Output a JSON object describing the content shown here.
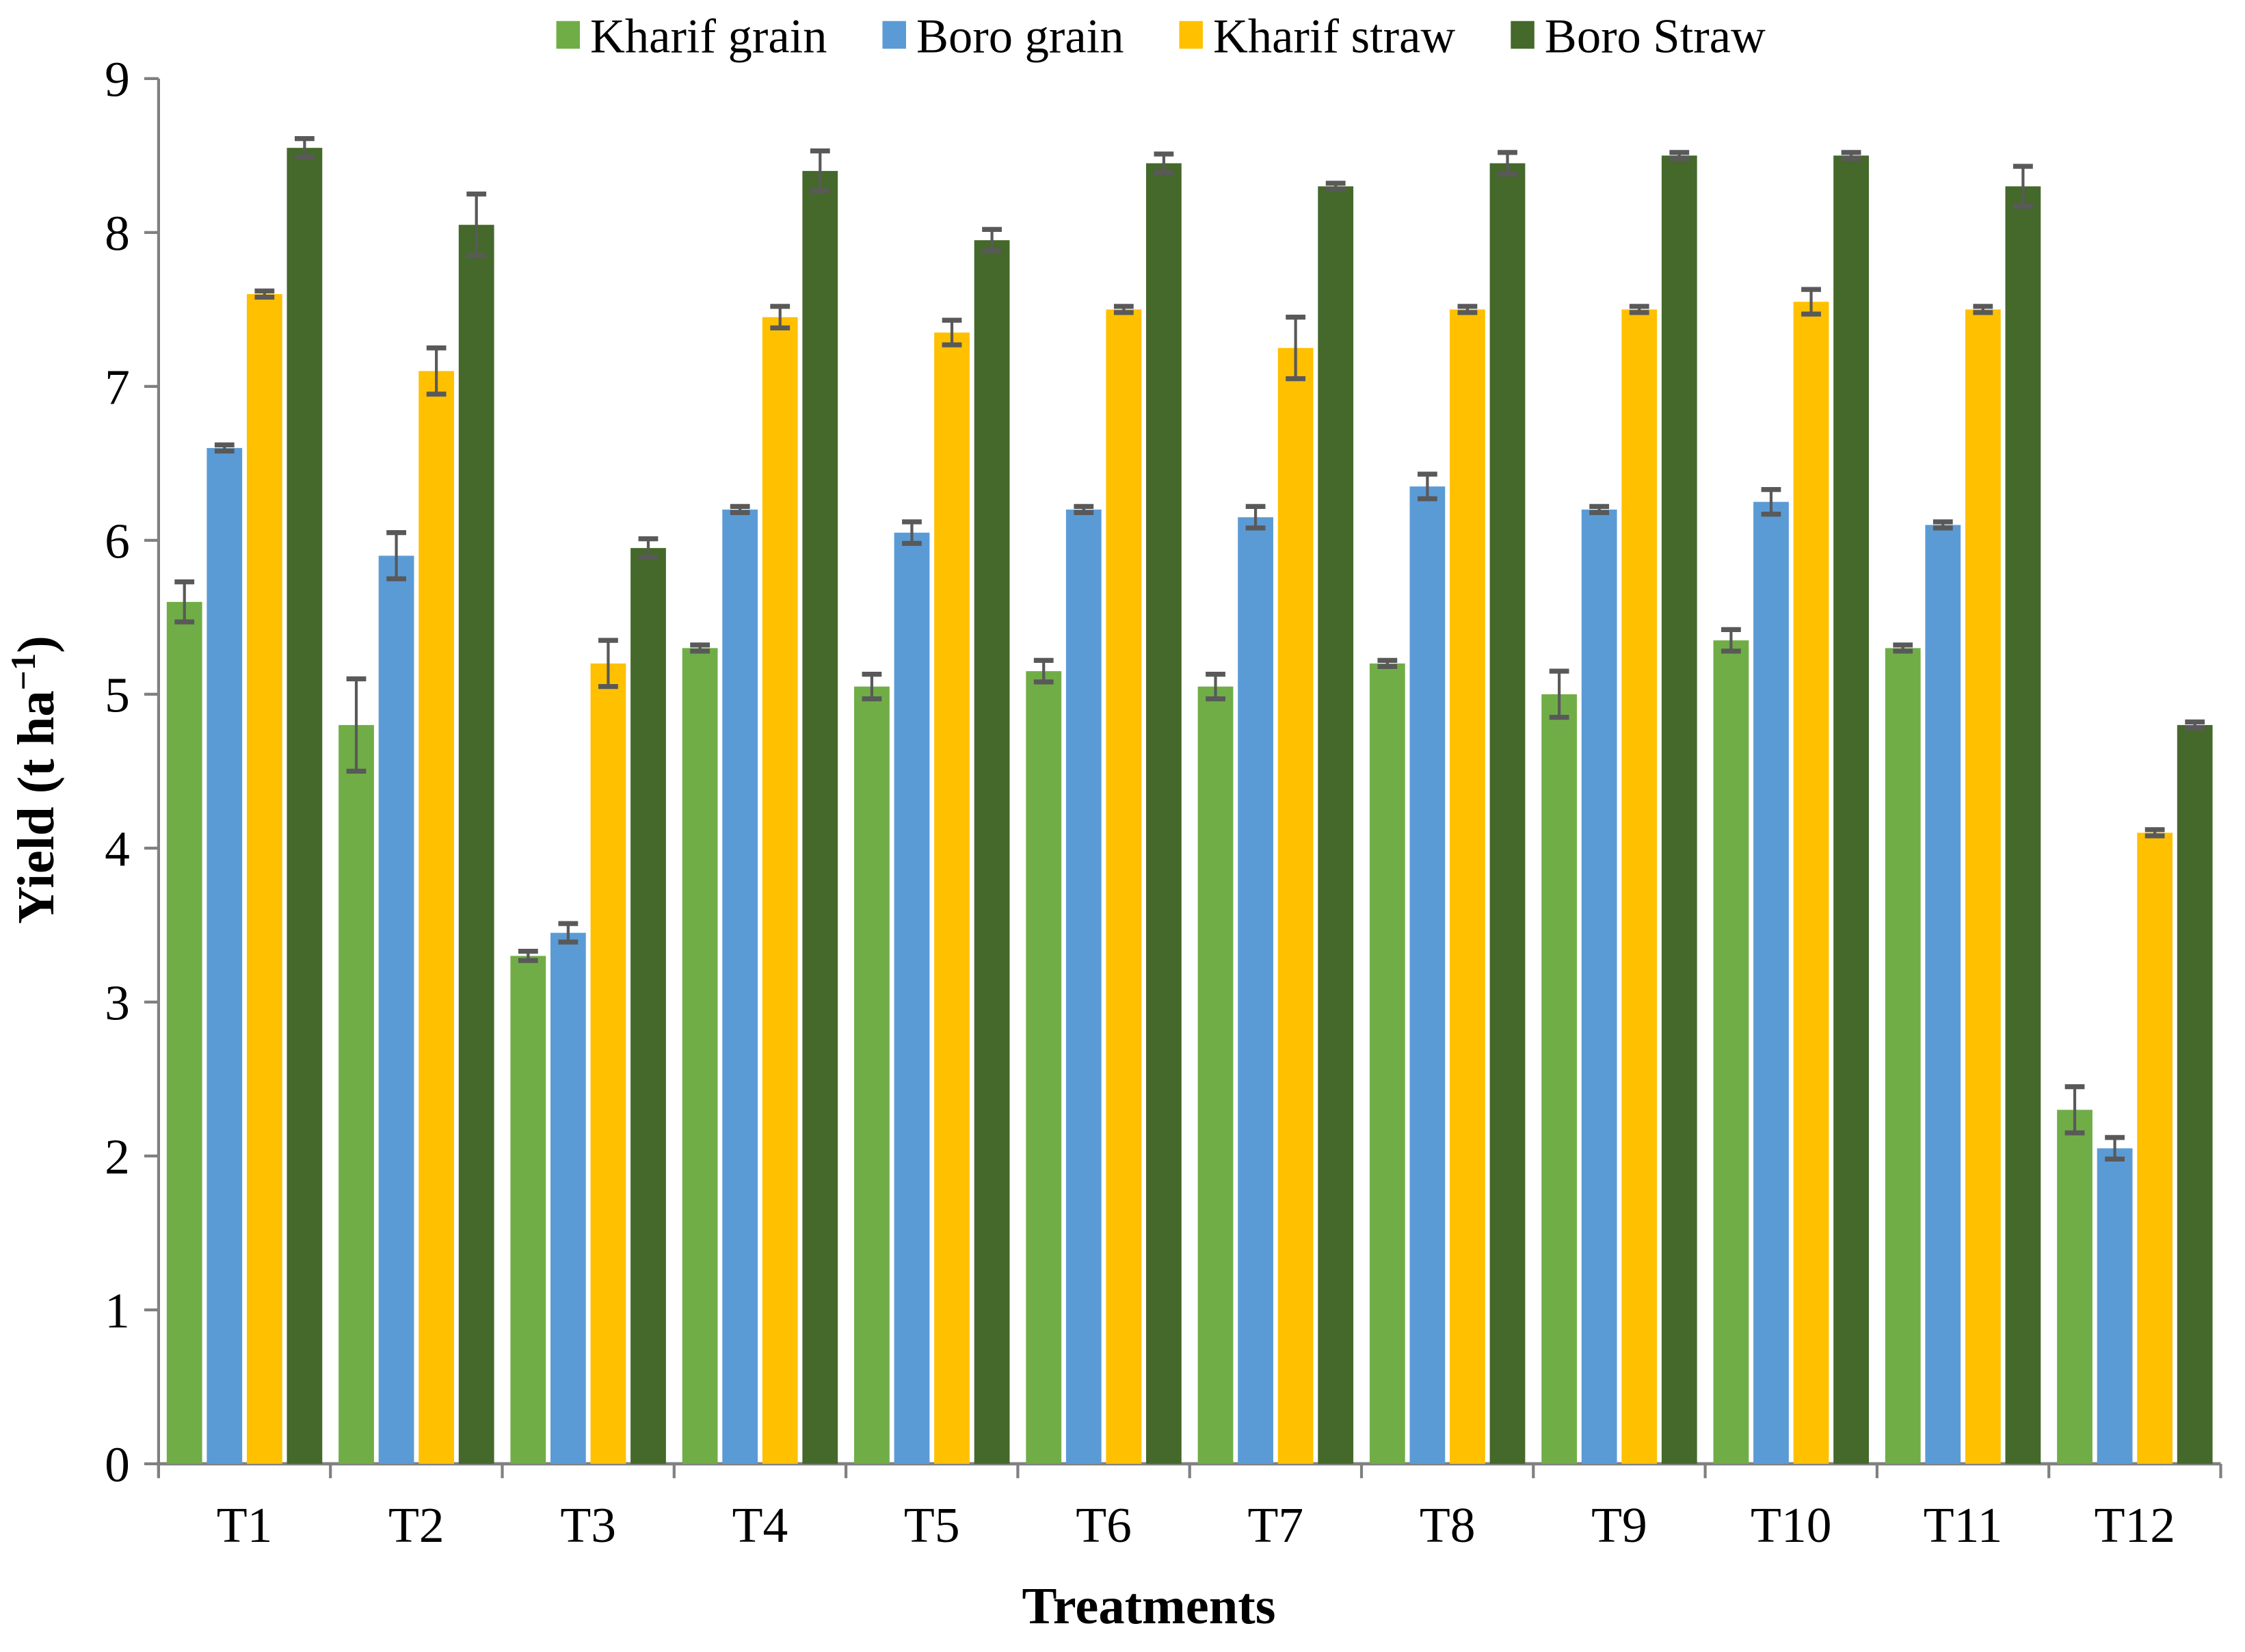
{
  "figure": {
    "background": "#ffffff"
  },
  "legend": {
    "position": "top-center",
    "items": [
      {
        "label": "Kharif grain",
        "color": "#70AD47"
      },
      {
        "label": "Boro grain",
        "color": "#5B9BD5"
      },
      {
        "label": "Kharif straw",
        "color": "#FFC000"
      },
      {
        "label": "Boro Straw",
        "color": "#45682B"
      }
    ]
  },
  "chart_data": {
    "type": "bar",
    "title": "",
    "xlabel": "Treatments",
    "ylabel": "Yield (t ha⁻¹)",
    "ylabel_parts": {
      "base": "Yield (t ha",
      "sup": "−1",
      "close": ")"
    },
    "ylim": [
      0,
      9
    ],
    "ytick_step": 1,
    "ytick_labels": [
      "0",
      "1",
      "2",
      "3",
      "4",
      "5",
      "6",
      "7",
      "8",
      "9"
    ],
    "grid": false,
    "legend_position": "top-center",
    "categories": [
      "T1",
      "T2",
      "T3",
      "T4",
      "T5",
      "T6",
      "T7",
      "T8",
      "T9",
      "T10",
      "T11",
      "T12"
    ],
    "series": [
      {
        "name": "Kharif grain",
        "color": "#70AD47",
        "values": [
          5.6,
          4.8,
          3.3,
          5.3,
          5.05,
          5.15,
          5.05,
          5.2,
          5.0,
          5.35,
          5.3,
          2.3
        ],
        "errors": [
          0.13,
          0.3,
          0.03,
          0.02,
          0.08,
          0.07,
          0.08,
          0.02,
          0.15,
          0.07,
          0.02,
          0.15
        ]
      },
      {
        "name": "Boro grain",
        "color": "#5B9BD5",
        "values": [
          6.6,
          5.9,
          3.45,
          6.2,
          6.05,
          6.2,
          6.15,
          6.35,
          6.2,
          6.25,
          6.1,
          2.05
        ],
        "errors": [
          0.02,
          0.15,
          0.06,
          0.02,
          0.07,
          0.02,
          0.07,
          0.08,
          0.02,
          0.08,
          0.02,
          0.07
        ]
      },
      {
        "name": "Kharif straw",
        "color": "#FFC000",
        "values": [
          7.6,
          7.1,
          5.2,
          7.45,
          7.35,
          7.5,
          7.25,
          7.5,
          7.5,
          7.55,
          7.5,
          4.1
        ],
        "errors": [
          0.02,
          0.15,
          0.15,
          0.07,
          0.08,
          0.02,
          0.2,
          0.02,
          0.02,
          0.08,
          0.02,
          0.02
        ]
      },
      {
        "name": "Boro Straw",
        "color": "#45682B",
        "values": [
          8.55,
          8.05,
          5.95,
          8.4,
          7.95,
          8.45,
          8.3,
          8.45,
          8.5,
          8.5,
          8.3,
          4.8
        ],
        "errors": [
          0.06,
          0.2,
          0.06,
          0.13,
          0.07,
          0.06,
          0.02,
          0.07,
          0.02,
          0.02,
          0.13,
          0.02
        ]
      }
    ],
    "error_bar_color": "#595959",
    "axis_color": "#808080"
  }
}
